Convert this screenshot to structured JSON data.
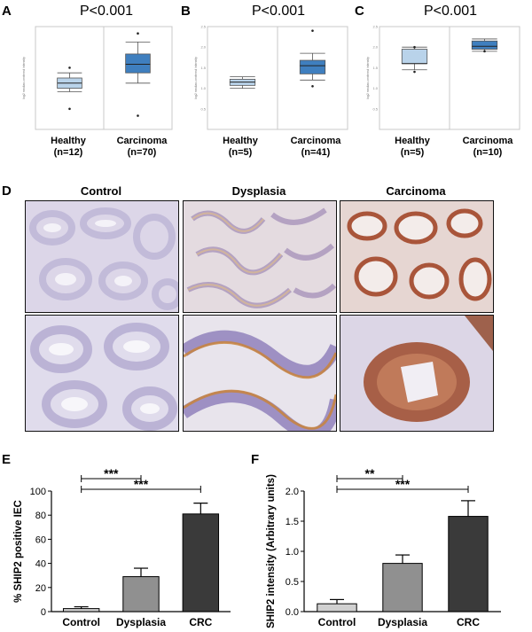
{
  "panels": {
    "A": {
      "letter": "A",
      "pvalue": "P<0.001",
      "groups": [
        {
          "name": "Healthy",
          "n": "(n=12)"
        },
        {
          "name": "Carcinoma",
          "n": "(n=70)"
        }
      ],
      "chart_data": {
        "type": "box",
        "title": "P<0.001",
        "ylabel": "log2 median-centered intensity",
        "ylim": [
          0,
          3.0
        ],
        "categories": [
          "Healthy (n=12)",
          "Carcinoma (n=70)"
        ],
        "boxes": [
          {
            "whisker_low": 1.1,
            "q1": 1.2,
            "median": 1.35,
            "q3": 1.5,
            "whisker_high": 1.65,
            "outliers": [
              0.6,
              1.8
            ],
            "color": "#b9d3ea"
          },
          {
            "whisker_low": 1.35,
            "q1": 1.65,
            "median": 1.9,
            "q3": 2.2,
            "whisker_high": 2.55,
            "outliers": [
              0.4,
              2.8
            ],
            "color": "#3f7fbf"
          }
        ]
      }
    },
    "B": {
      "letter": "B",
      "pvalue": "P<0.001",
      "groups": [
        {
          "name": "Healthy",
          "n": "(n=5)"
        },
        {
          "name": "Carcinoma",
          "n": "(n=41)"
        }
      ],
      "chart_data": {
        "type": "box",
        "title": "P<0.001",
        "ylabel": "log2 median-centered intensity",
        "ylim": [
          0,
          2.5
        ],
        "yticks": [
          "0.5",
          "1.0",
          "1.5",
          "2.0",
          "2.5"
        ],
        "categories": [
          "Healthy (n=5)",
          "Carcinoma (n=41)"
        ],
        "boxes": [
          {
            "whisker_low": 1.0,
            "q1": 1.07,
            "median": 1.15,
            "q3": 1.22,
            "whisker_high": 1.28,
            "outliers": [],
            "color": "#b9d3ea"
          },
          {
            "whisker_low": 1.2,
            "q1": 1.35,
            "median": 1.55,
            "q3": 1.68,
            "whisker_high": 1.85,
            "outliers": [
              1.05,
              2.4
            ],
            "color": "#3f7fbf"
          }
        ]
      }
    },
    "C": {
      "letter": "C",
      "pvalue": "P<0.001",
      "groups": [
        {
          "name": "Healthy",
          "n": "(n=5)"
        },
        {
          "name": "Carcinoma",
          "n": "(n=10)"
        }
      ],
      "chart_data": {
        "type": "box",
        "title": "P<0.001",
        "ylabel": "log2 median-centered intensity",
        "ylim": [
          0,
          2.5
        ],
        "yticks": [
          "0.5",
          "1.0",
          "1.5",
          "2.0",
          "2.5"
        ],
        "categories": [
          "Healthy (n=5)",
          "Carcinoma (n=10)"
        ],
        "boxes": [
          {
            "whisker_low": 1.45,
            "q1": 1.6,
            "median": 1.6,
            "q3": 1.95,
            "whisker_high": 2.0,
            "outliers": [
              1.4,
              2.0
            ],
            "color": "#b9d3ea"
          },
          {
            "whisker_low": 1.9,
            "q1": 1.95,
            "median": 2.02,
            "q3": 2.15,
            "whisker_high": 2.2,
            "outliers": [
              1.9
            ],
            "color": "#3f7fbf"
          }
        ]
      }
    },
    "D": {
      "letter": "D",
      "columns": [
        "Control",
        "Dysplasia",
        "Carcinoma"
      ]
    },
    "E": {
      "letter": "E",
      "chart_data": {
        "type": "bar",
        "categories": [
          "Control",
          "Dysplasia",
          "CRC"
        ],
        "values": [
          2.5,
          29,
          81
        ],
        "errors": [
          1.5,
          7,
          9
        ],
        "colors": [
          "#d0d0d0",
          "#909090",
          "#3a3a3a"
        ],
        "ylabel": "% SHIP2 positive IEC",
        "ylim": [
          0,
          100
        ],
        "yticks": [
          "0",
          "20",
          "40",
          "60",
          "80",
          "100"
        ],
        "significance": [
          {
            "from": 0,
            "to": 1,
            "label": "***"
          },
          {
            "from": 0,
            "to": 2,
            "label": "***"
          }
        ]
      }
    },
    "F": {
      "letter": "F",
      "chart_data": {
        "type": "bar",
        "categories": [
          "Control",
          "Dysplasia",
          "CRC"
        ],
        "values": [
          0.13,
          0.8,
          1.58
        ],
        "errors": [
          0.07,
          0.14,
          0.26
        ],
        "colors": [
          "#d0d0d0",
          "#909090",
          "#3a3a3a"
        ],
        "ylabel": "SHIP2 intensity (Arbitrary units)",
        "ylim": [
          0,
          2.0
        ],
        "yticks": [
          "0.0",
          "0.5",
          "1.0",
          "1.5",
          "2.0"
        ],
        "significance": [
          {
            "from": 0,
            "to": 1,
            "label": "**"
          },
          {
            "from": 0,
            "to": 2,
            "label": "***"
          }
        ]
      }
    }
  }
}
